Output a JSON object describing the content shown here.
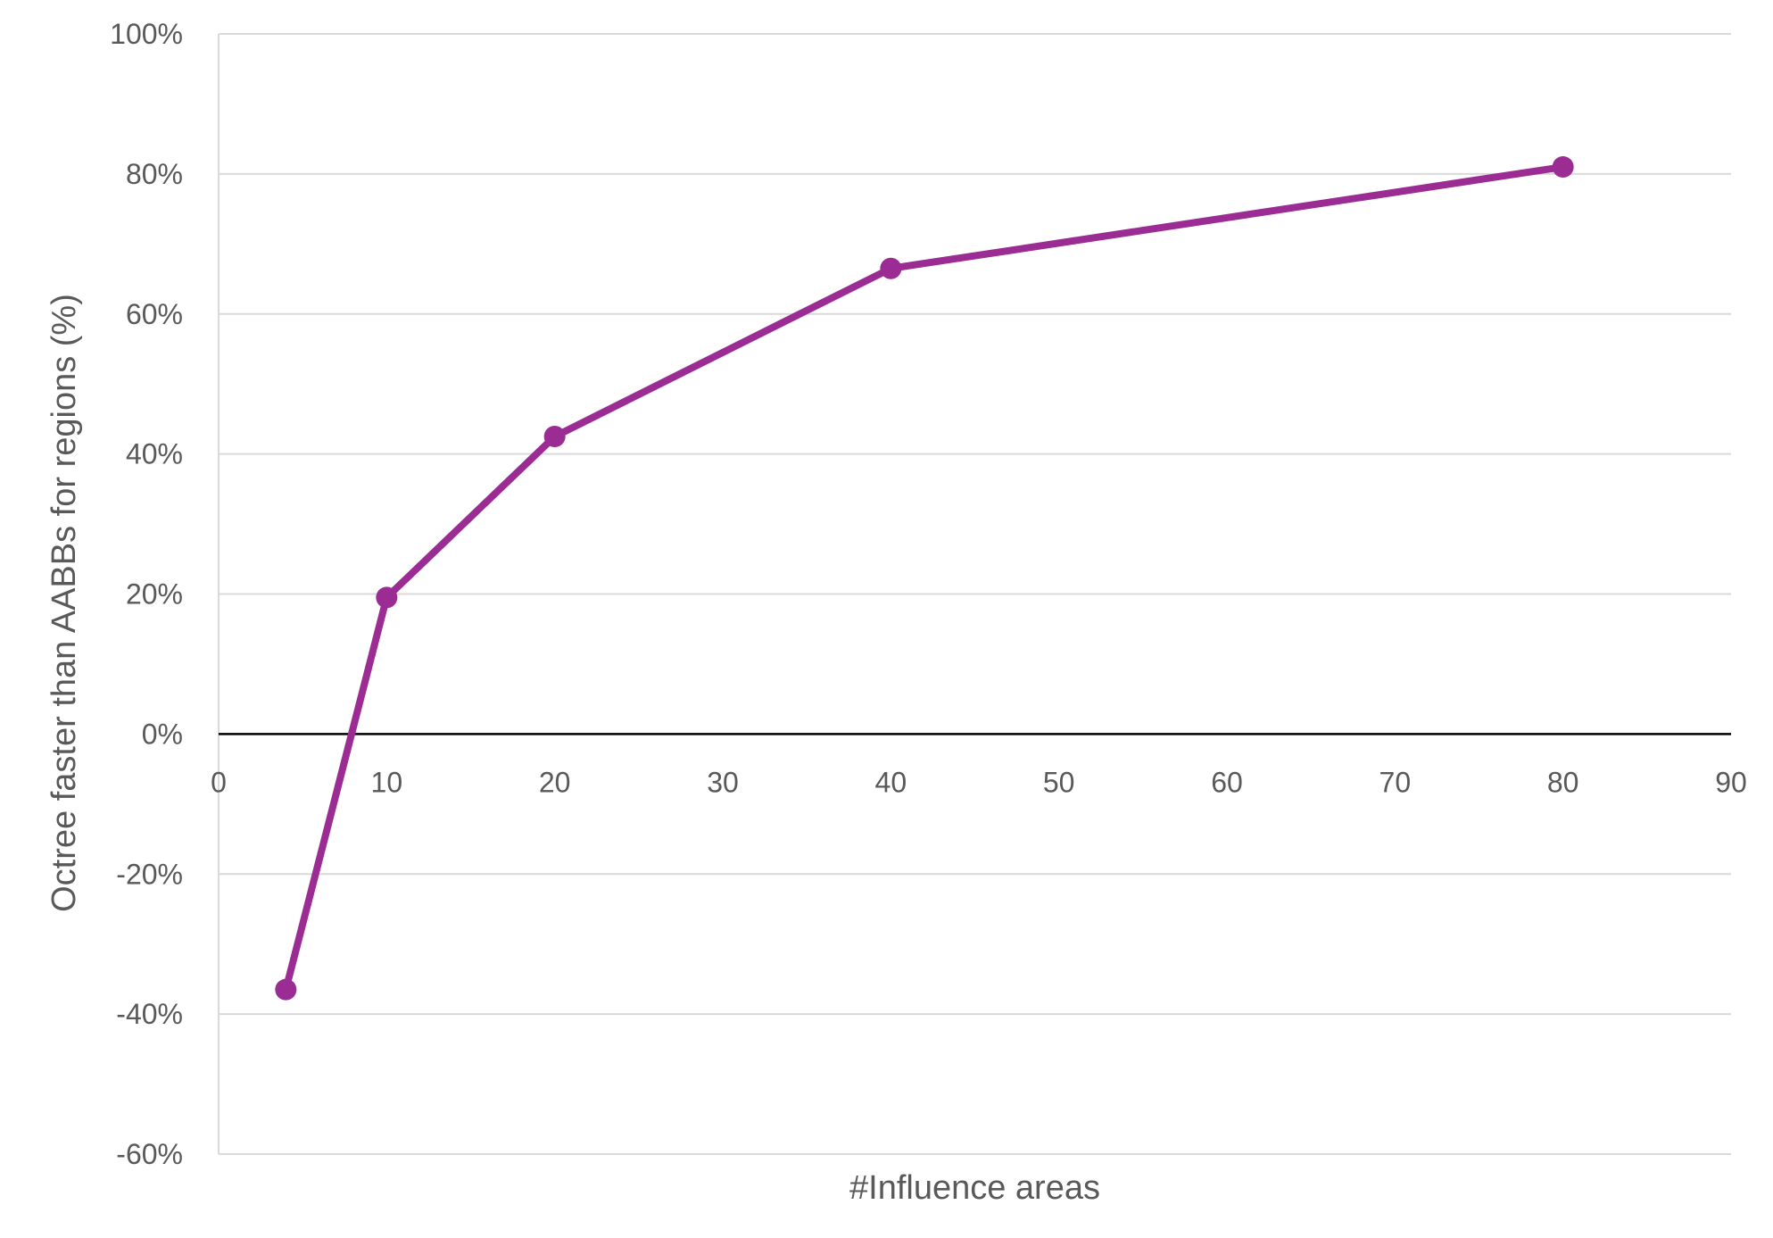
{
  "chart_data": {
    "type": "scatter",
    "title": "",
    "xlabel": "#Influence areas",
    "ylabel": "Octree faster than AABBs for regions (%)",
    "xlim": [
      0,
      90
    ],
    "ylim": [
      -60,
      100
    ],
    "x_ticks": [
      0,
      10,
      20,
      30,
      40,
      50,
      60,
      70,
      80,
      90
    ],
    "y_ticks": [
      -60,
      -40,
      -20,
      0,
      20,
      40,
      60,
      80,
      100
    ],
    "y_tick_suffix": "%",
    "grid": "horizontal",
    "legend": "none",
    "series": [
      {
        "x": [
          4,
          10,
          20,
          40,
          80
        ],
        "y": [
          -36.5,
          19.5,
          42.5,
          66.5,
          81
        ],
        "color": "#9B2C93",
        "markers": true,
        "line": true
      }
    ]
  },
  "colors": {
    "grid": "#d9d9d9",
    "zero_line": "#000000",
    "frame": "#d9d9d9",
    "label": "#595959"
  }
}
